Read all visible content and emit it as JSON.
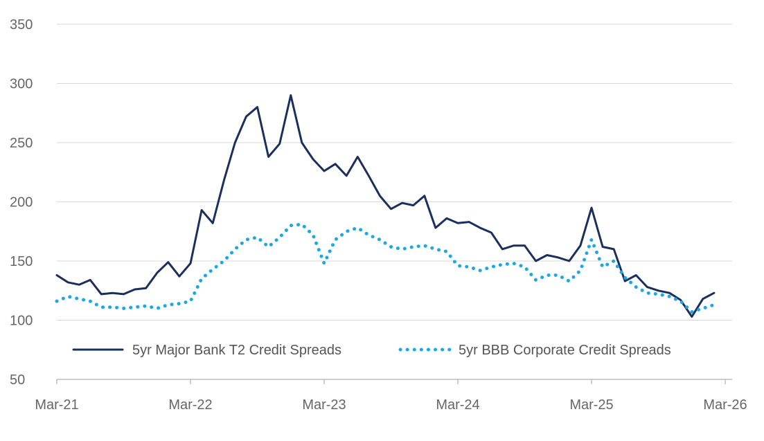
{
  "chart_data": {
    "type": "line",
    "title": "",
    "xlabel": "",
    "ylabel": "",
    "x_ticks": [
      "Mar-21",
      "Mar-22",
      "Mar-23",
      "Mar-24",
      "Mar-25",
      "Mar-26"
    ],
    "x_range": [
      "Mar-21",
      "Mar-26"
    ],
    "ylim": [
      50,
      350
    ],
    "y_ticks": [
      50,
      100,
      150,
      200,
      250,
      300,
      350
    ],
    "grid": "horizontal",
    "legend_position": "bottom",
    "series": [
      {
        "name": "5yr Major Bank T2 Credit Spreads",
        "color": "#1b2f5e",
        "style": "solid",
        "points": [
          [
            "2021-03",
            138
          ],
          [
            "2021-04",
            132
          ],
          [
            "2021-05",
            130
          ],
          [
            "2021-06",
            134
          ],
          [
            "2021-07",
            122
          ],
          [
            "2021-08",
            123
          ],
          [
            "2021-09",
            122
          ],
          [
            "2021-10",
            126
          ],
          [
            "2021-11",
            127
          ],
          [
            "2021-12",
            140
          ],
          [
            "2022-01",
            149
          ],
          [
            "2022-02",
            137
          ],
          [
            "2022-03",
            148
          ],
          [
            "2022-04",
            193
          ],
          [
            "2022-05",
            182
          ],
          [
            "2022-06",
            218
          ],
          [
            "2022-07",
            250
          ],
          [
            "2022-08",
            272
          ],
          [
            "2022-09",
            280
          ],
          [
            "2022-10",
            238
          ],
          [
            "2022-11",
            249
          ],
          [
            "2022-12",
            290
          ],
          [
            "2023-01",
            250
          ],
          [
            "2023-02",
            236
          ],
          [
            "2023-03",
            226
          ],
          [
            "2023-04",
            232
          ],
          [
            "2023-05",
            222
          ],
          [
            "2023-06",
            238
          ],
          [
            "2023-07",
            222
          ],
          [
            "2023-08",
            205
          ],
          [
            "2023-09",
            194
          ],
          [
            "2023-10",
            199
          ],
          [
            "2023-11",
            197
          ],
          [
            "2023-12",
            205
          ],
          [
            "2024-01",
            178
          ],
          [
            "2024-02",
            186
          ],
          [
            "2024-03",
            182
          ],
          [
            "2024-04",
            183
          ],
          [
            "2024-05",
            178
          ],
          [
            "2024-06",
            174
          ],
          [
            "2024-07",
            160
          ],
          [
            "2024-08",
            163
          ],
          [
            "2024-09",
            163
          ],
          [
            "2024-10",
            150
          ],
          [
            "2024-11",
            155
          ],
          [
            "2024-12",
            153
          ],
          [
            "2025-01",
            150
          ],
          [
            "2025-02",
            163
          ],
          [
            "2025-03",
            195
          ],
          [
            "2025-04",
            162
          ],
          [
            "2025-05",
            160
          ],
          [
            "2025-06",
            133
          ],
          [
            "2025-07",
            138
          ],
          [
            "2025-08",
            128
          ],
          [
            "2025-09",
            125
          ],
          [
            "2025-10",
            123
          ],
          [
            "2025-11",
            117
          ],
          [
            "2025-12",
            103
          ],
          [
            "2026-01",
            118
          ],
          [
            "2026-02",
            123
          ]
        ]
      },
      {
        "name": "5yr BBB Corporate Credit Spreads",
        "color": "#1ea8e0",
        "style": "dotted",
        "points": [
          [
            "2021-03",
            116
          ],
          [
            "2021-04",
            120
          ],
          [
            "2021-05",
            118
          ],
          [
            "2021-06",
            116
          ],
          [
            "2021-07",
            111
          ],
          [
            "2021-08",
            111
          ],
          [
            "2021-09",
            110
          ],
          [
            "2021-10",
            111
          ],
          [
            "2021-11",
            112
          ],
          [
            "2021-12",
            110
          ],
          [
            "2022-01",
            113
          ],
          [
            "2022-02",
            114
          ],
          [
            "2022-03",
            116
          ],
          [
            "2022-04",
            135
          ],
          [
            "2022-05",
            143
          ],
          [
            "2022-06",
            150
          ],
          [
            "2022-07",
            160
          ],
          [
            "2022-08",
            168
          ],
          [
            "2022-09",
            170
          ],
          [
            "2022-10",
            162
          ],
          [
            "2022-11",
            170
          ],
          [
            "2022-12",
            180
          ],
          [
            "2023-01",
            181
          ],
          [
            "2023-02",
            172
          ],
          [
            "2023-03",
            148
          ],
          [
            "2023-04",
            168
          ],
          [
            "2023-05",
            175
          ],
          [
            "2023-06",
            178
          ],
          [
            "2023-07",
            172
          ],
          [
            "2023-08",
            168
          ],
          [
            "2023-09",
            162
          ],
          [
            "2023-10",
            160
          ],
          [
            "2023-11",
            162
          ],
          [
            "2023-12",
            163
          ],
          [
            "2024-01",
            160
          ],
          [
            "2024-02",
            158
          ],
          [
            "2024-03",
            146
          ],
          [
            "2024-04",
            145
          ],
          [
            "2024-05",
            142
          ],
          [
            "2024-06",
            145
          ],
          [
            "2024-07",
            147
          ],
          [
            "2024-08",
            148
          ],
          [
            "2024-09",
            145
          ],
          [
            "2024-10",
            134
          ],
          [
            "2024-11",
            138
          ],
          [
            "2024-12",
            138
          ],
          [
            "2025-01",
            133
          ],
          [
            "2025-02",
            142
          ],
          [
            "2025-03",
            168
          ],
          [
            "2025-04",
            145
          ],
          [
            "2025-05",
            150
          ],
          [
            "2025-06",
            136
          ],
          [
            "2025-07",
            128
          ],
          [
            "2025-08",
            123
          ],
          [
            "2025-09",
            122
          ],
          [
            "2025-10",
            120
          ],
          [
            "2025-11",
            116
          ],
          [
            "2025-12",
            107
          ],
          [
            "2026-01",
            110
          ],
          [
            "2026-02",
            113
          ]
        ]
      }
    ]
  }
}
